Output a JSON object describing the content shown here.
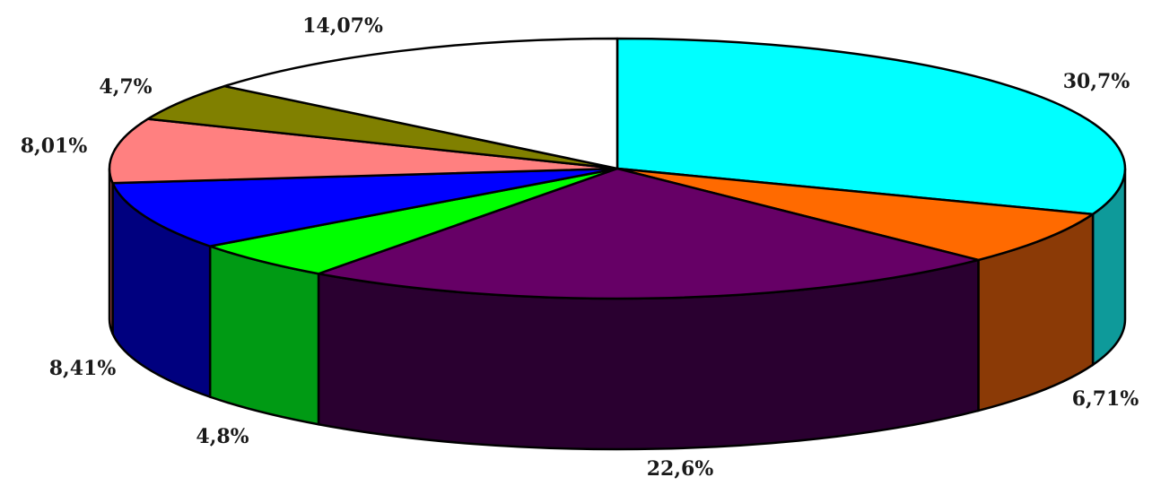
{
  "chart_data": {
    "type": "pie",
    "style": "3d-exploded-none",
    "start": "12 o'clock, clockwise",
    "slices": [
      {
        "label": "30,7%",
        "value": 30.7,
        "color": "#00ffff",
        "side_color": "#0e9a9a"
      },
      {
        "label": "6,71%",
        "value": 6.71,
        "color": "#ff6a00",
        "side_color": "#8b3a06"
      },
      {
        "label": "22,6%",
        "value": 22.6,
        "color": "#660066",
        "side_color": "#2a0030"
      },
      {
        "label": "4,8%",
        "value": 4.8,
        "color": "#00ff00",
        "side_color": "#009a14"
      },
      {
        "label": "8,41%",
        "value": 8.41,
        "color": "#0000ff",
        "side_color": "#00007f"
      },
      {
        "label": "8,01%",
        "value": 8.01,
        "color": "#ff8080",
        "side_color": "#b05050"
      },
      {
        "label": "4,7%",
        "value": 4.7,
        "color": "#808000",
        "side_color": "#4d4d00"
      },
      {
        "label": "14,07%",
        "value": 14.07,
        "color": "#ffffff",
        "side_color": "#d9d9d9"
      }
    ]
  }
}
